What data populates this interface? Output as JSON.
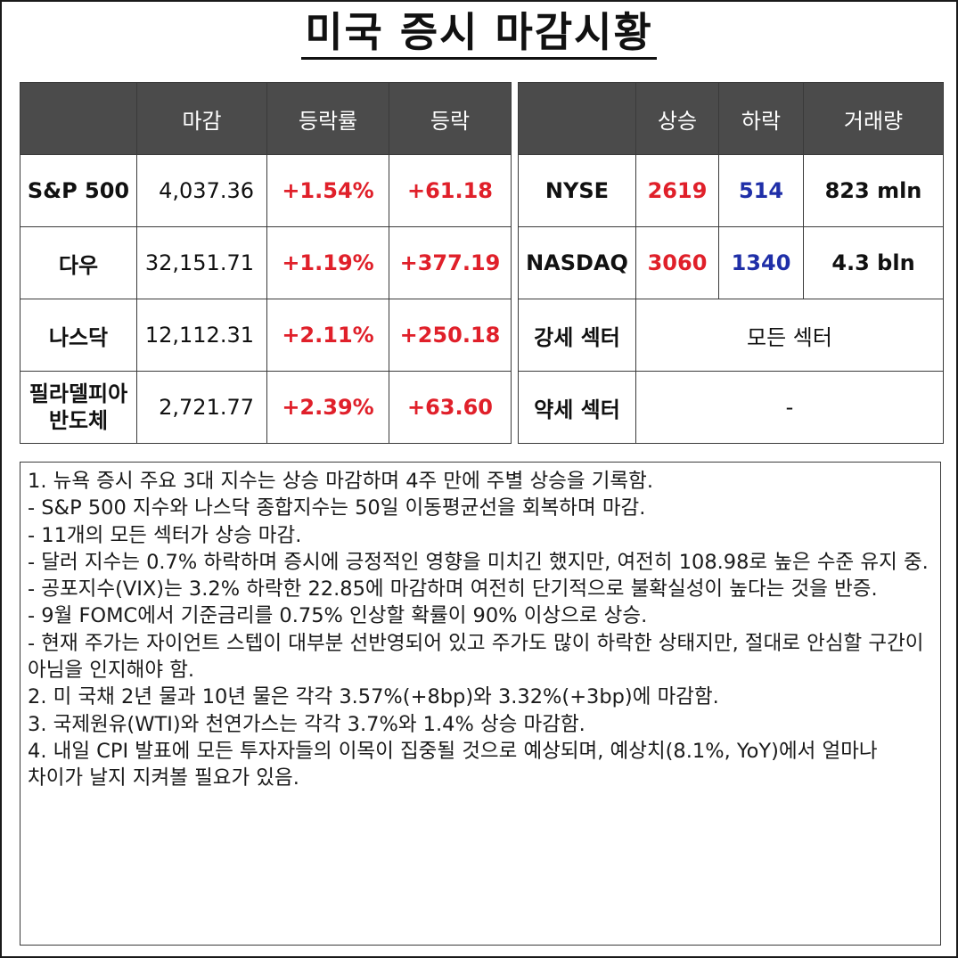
{
  "title": "미국 증시 마감시황",
  "left_table": {
    "headers": [
      "",
      "마감",
      "등락률",
      "등락"
    ],
    "rows": [
      {
        "name": "S&P 500",
        "close": "4,037.36",
        "pct": "+1.54%",
        "chg": "+61.18"
      },
      {
        "name": "다우",
        "close": "32,151.71",
        "pct": "+1.19%",
        "chg": "+377.19"
      },
      {
        "name": "나스닥",
        "close": "12,112.31",
        "pct": "+2.11%",
        "chg": "+250.18"
      },
      {
        "name": "필라델피아 반도체",
        "close": "2,721.77",
        "pct": "+2.39%",
        "chg": "+63.60"
      }
    ]
  },
  "right_table": {
    "headers": [
      "",
      "상승",
      "하락",
      "거래량"
    ],
    "rows": [
      {
        "name": "NYSE",
        "up": "2619",
        "down": "514",
        "volume": "823 mln"
      },
      {
        "name": "NASDAQ",
        "up": "3060",
        "down": "1340",
        "volume": "4.3 bln"
      }
    ],
    "strong_sector_label": "강세 섹터",
    "strong_sector_value": "모든 섹터",
    "weak_sector_label": "약세 섹터",
    "weak_sector_value": "-"
  },
  "colors": {
    "up": "#e0202a",
    "down": "#1f2fa8",
    "header_bg": "#4b4b4b"
  },
  "notes": [
    "1. 뉴욕 증시 주요 3대 지수는 상승 마감하며 4주 만에 주별 상승을 기록함.",
    "- S&P 500 지수와 나스닥 종합지수는 50일 이동평균선을 회복하며 마감.",
    "- 11개의 모든 섹터가 상승 마감.",
    "- 달러 지수는 0.7% 하락하며 증시에 긍정적인 영향을 미치긴 했지만, 여전히 108.98로 높은 수준 유지 중.",
    "- 공포지수(VIX)는 3.2% 하락한 22.85에 마감하며 여전히 단기적으로 불확실성이 높다는 것을 반증.",
    "- 9월 FOMC에서 기준금리를 0.75% 인상할 확률이 90% 이상으로 상승.",
    "- 현재 주가는 자이언트 스텝이 대부분 선반영되어 있고 주가도 많이 하락한 상태지만, 절대로 안심할 구간이 아님을 인지해야 함.",
    "2. 미 국채 2년 물과 10년 물은 각각 3.57%(+8bp)와 3.32%(+3bp)에 마감함.",
    "3. 국제원유(WTI)와 천연가스는 각각 3.7%와 1.4% 상승 마감함.",
    "4. 내일 CPI 발표에 모든 투자자들의 이목이 집중될 것으로 예상되며, 예상치(8.1%, YoY)에서 얼마나 차이가 날지 지켜볼 필요가 있음."
  ]
}
